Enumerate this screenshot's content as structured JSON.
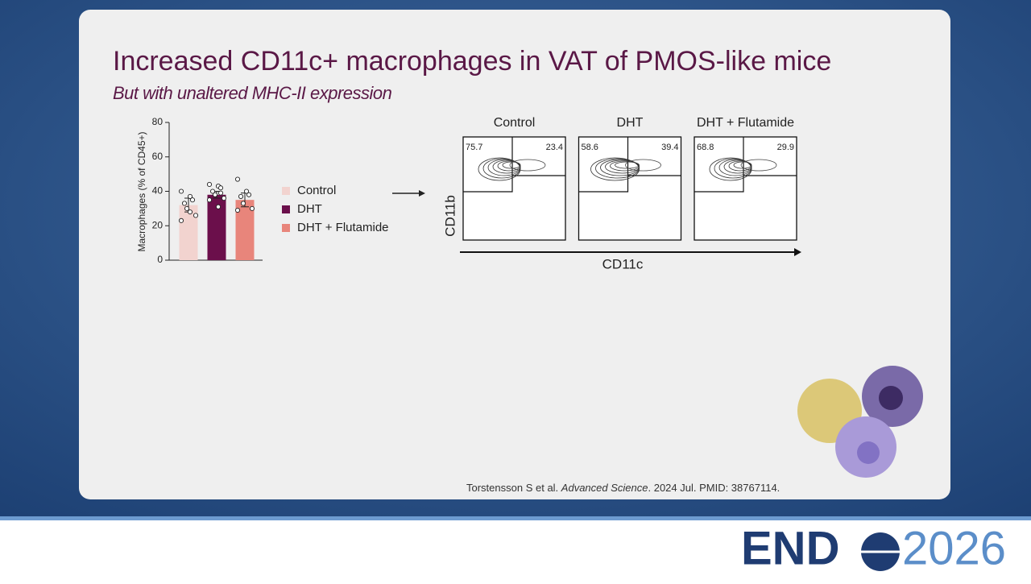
{
  "title": "Increased CD11c+ macrophages in VAT of PMOS-like mice",
  "subtitle": "But with unaltered MHC-II expression",
  "chart_data": {
    "type": "bar",
    "ylabel": "Macrophages (% of CD45+)",
    "categories": [
      "Control",
      "DHT",
      "DHT + Flutamide"
    ],
    "values": [
      32,
      38,
      35
    ],
    "errors": [
      4,
      2,
      4
    ],
    "points": [
      [
        40,
        37,
        35,
        33,
        30,
        26,
        23,
        28
      ],
      [
        44,
        43,
        42,
        40,
        38,
        36,
        35,
        31,
        39
      ],
      [
        47,
        40,
        38,
        37,
        33,
        30,
        29
      ]
    ],
    "colors": [
      "#f2d3cf",
      "#6b0f4b",
      "#e8857b"
    ],
    "ylim": [
      0,
      80
    ],
    "yticks": [
      0,
      20,
      40,
      60,
      80
    ]
  },
  "flow": {
    "xlabel": "CD11c",
    "ylabel": "CD11b",
    "panels": [
      {
        "title": "Control",
        "left": 75.7,
        "right": 23.4
      },
      {
        "title": "DHT",
        "left": 58.6,
        "right": 39.4
      },
      {
        "title": "DHT + Flutamide",
        "left": 68.8,
        "right": 29.9
      }
    ]
  },
  "citation": {
    "authors": "Torstensson S et al.",
    "journal": "Advanced Science",
    "rest": ". 2024 Jul. PMID: 38767114."
  },
  "logo": {
    "left": "END",
    "right": "2026"
  }
}
